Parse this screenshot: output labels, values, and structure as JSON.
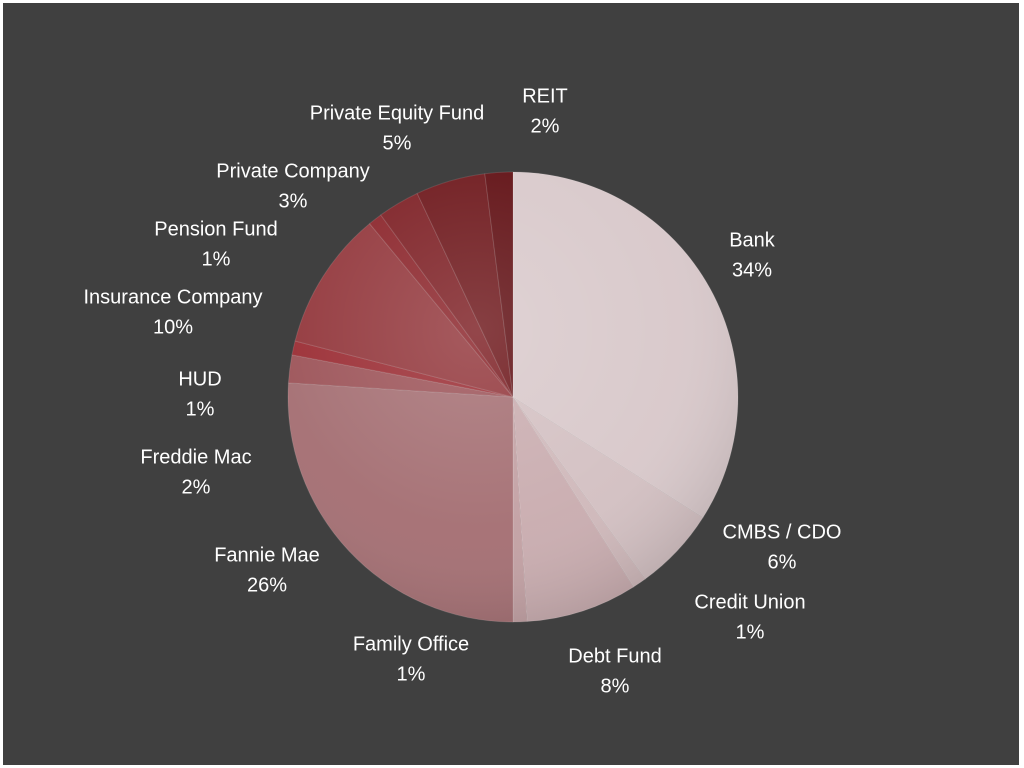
{
  "chart_data": {
    "type": "pie",
    "title": "",
    "start_angle_deg": 0,
    "direction": "clockwise",
    "slices": [
      {
        "label": "Bank",
        "value": 34,
        "display": "34%",
        "color": "#d8c8ca"
      },
      {
        "label": "CMBS / CDO",
        "value": 6,
        "display": "6%",
        "color": "#d3c0c2"
      },
      {
        "label": "Credit Union",
        "value": 1,
        "display": "1%",
        "color": "#cfb8ba"
      },
      {
        "label": "Debt Fund",
        "value": 8,
        "display": "8%",
        "color": "#c9acaf"
      },
      {
        "label": "Family Office",
        "value": 1,
        "display": "1%",
        "color": "#c2a0a3"
      },
      {
        "label": "Fannie Mae",
        "value": 26,
        "display": "26%",
        "color": "#a46e72"
      },
      {
        "label": "Freddie Mac",
        "value": 2,
        "display": "2%",
        "color": "#9c5358"
      },
      {
        "label": "HUD",
        "value": 1,
        "display": "1%",
        "color": "#9a2c33"
      },
      {
        "label": "Insurance Company",
        "value": 10,
        "display": "10%",
        "color": "#92363b"
      },
      {
        "label": "Pension Fund",
        "value": 1,
        "display": "1%",
        "color": "#8a2329"
      },
      {
        "label": "Private Company",
        "value": 3,
        "display": "3%",
        "color": "#7c1e23"
      },
      {
        "label": "Private Equity Fund",
        "value": 5,
        "display": "5%",
        "color": "#6c1519"
      },
      {
        "label": "REIT",
        "value": 2,
        "display": "2%",
        "color": "#5e0c10"
      }
    ]
  }
}
